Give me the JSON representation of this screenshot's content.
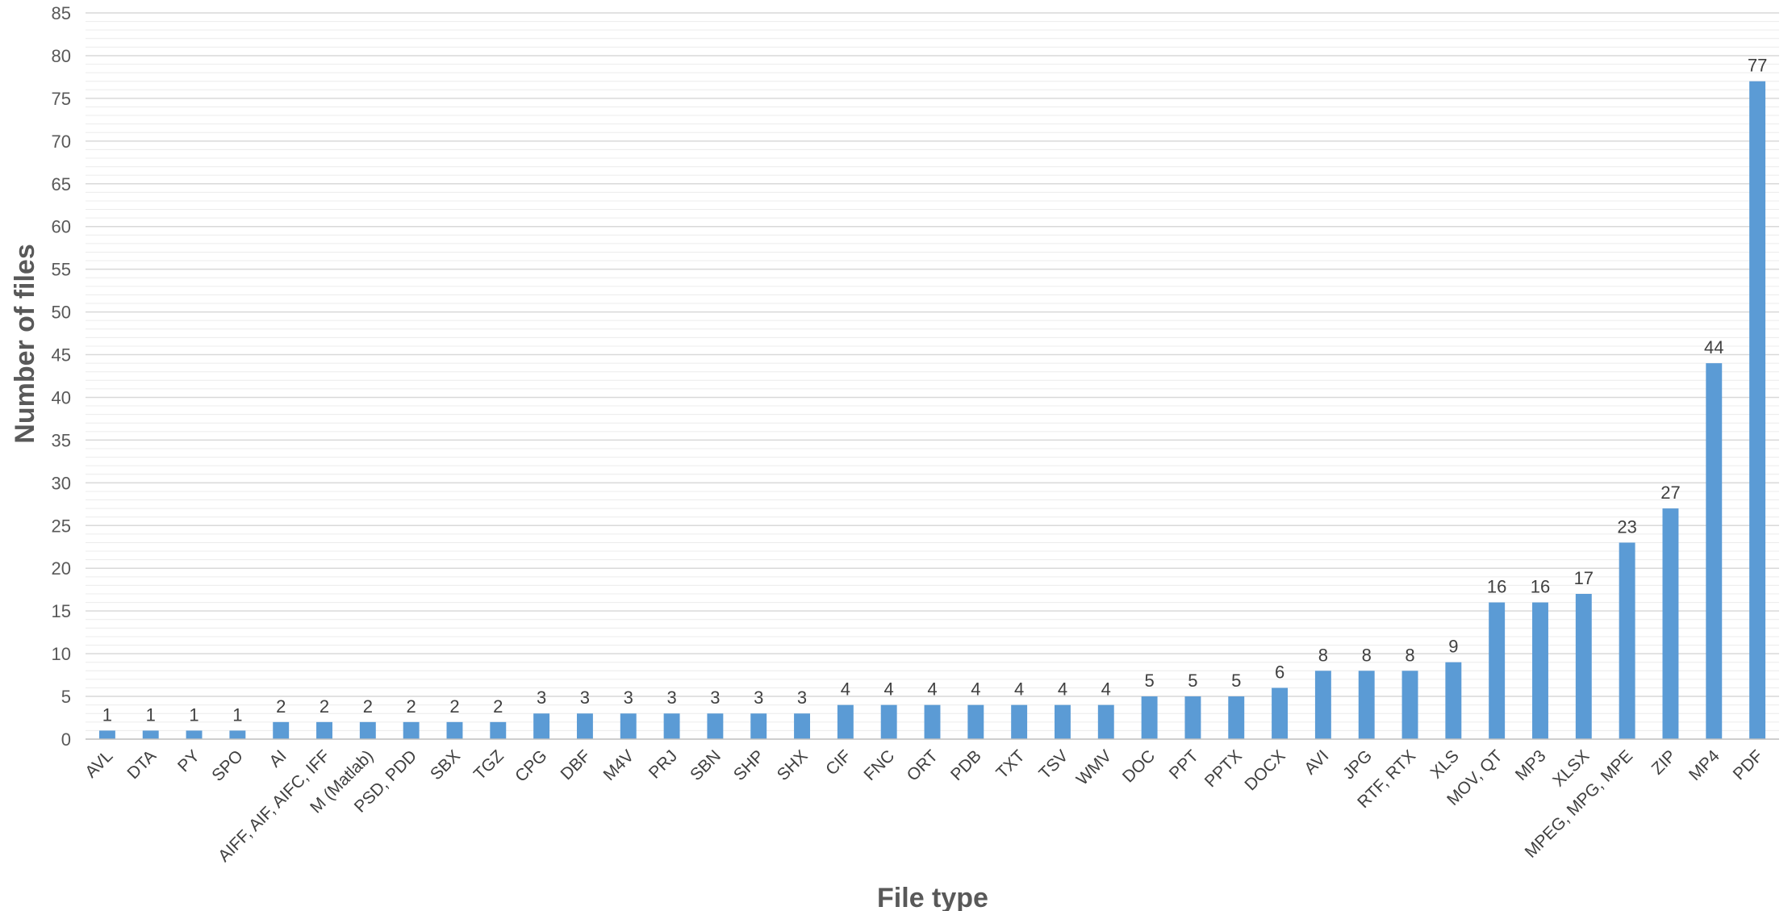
{
  "chart_data": {
    "type": "bar",
    "xlabel": "File type",
    "ylabel": "Number of files",
    "ylim": [
      0,
      85
    ],
    "y_tick_step": 5,
    "grid": true,
    "bar_color": "#5b9bd5",
    "categories": [
      "AVL",
      "DTA",
      "PY",
      "SPO",
      "AI",
      "AIFF, AIF, AIFC, IFF",
      "M (Matlab)",
      "PSD, PDD",
      "SBX",
      "TGZ",
      "CPG",
      "DBF",
      "M4V",
      "PRJ",
      "SBN",
      "SHP",
      "SHX",
      "CIF",
      "FNC",
      "ORT",
      "PDB",
      "TXT",
      "TSV",
      "WMV",
      "DOC",
      "PPT",
      "PPTX",
      "DOCX",
      "AVI",
      "JPG",
      "RTF, RTX",
      "XLS",
      "MOV, QT",
      "MP3",
      "XLSX",
      "MPEG, MPG, MPE",
      "ZIP",
      "MP4",
      "PDF"
    ],
    "values": [
      1,
      1,
      1,
      1,
      2,
      2,
      2,
      2,
      2,
      2,
      3,
      3,
      3,
      3,
      3,
      3,
      3,
      4,
      4,
      4,
      4,
      4,
      4,
      4,
      5,
      5,
      5,
      6,
      8,
      8,
      8,
      9,
      16,
      16,
      17,
      23,
      27,
      44,
      77
    ],
    "y_ticks": [
      "0",
      "5",
      "10",
      "15",
      "20",
      "25",
      "30",
      "35",
      "40",
      "45",
      "50",
      "55",
      "60",
      "65",
      "70",
      "75",
      "80",
      "85"
    ]
  }
}
